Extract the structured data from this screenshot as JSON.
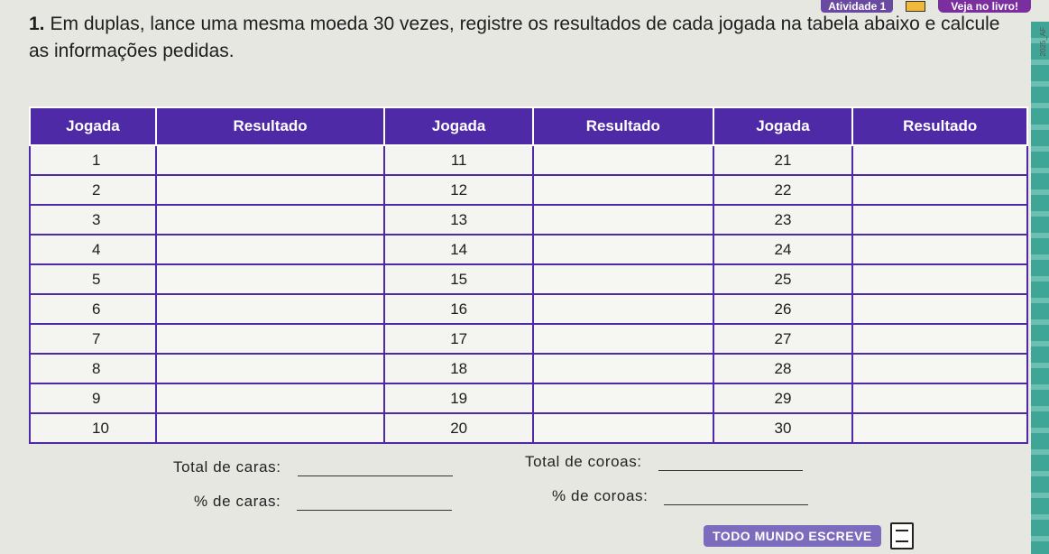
{
  "header": {
    "activity_label": "Atividade 1",
    "book_icon": "book-icon",
    "see_book_label": "Veja no livro!"
  },
  "question": {
    "number": "1.",
    "text": "Em duplas, lance uma mesma moeda 30 vezes, registre os resultados de cada jogada na tabela abaixo e calcule as informações pedidas."
  },
  "side_text": "2025_AF",
  "table": {
    "headers": [
      "Jogada",
      "Resultado",
      "Jogada",
      "Resultado",
      "Jogada",
      "Resultado"
    ],
    "rows": [
      [
        "1",
        "",
        "11",
        "",
        "21",
        ""
      ],
      [
        "2",
        "",
        "12",
        "",
        "22",
        ""
      ],
      [
        "3",
        "",
        "13",
        "",
        "23",
        ""
      ],
      [
        "4",
        "",
        "14",
        "",
        "24",
        ""
      ],
      [
        "5",
        "",
        "15",
        "",
        "25",
        ""
      ],
      [
        "6",
        "",
        "16",
        "",
        "26",
        ""
      ],
      [
        "7",
        "",
        "17",
        "",
        "27",
        ""
      ],
      [
        "8",
        "",
        "18",
        "",
        "28",
        ""
      ],
      [
        "9",
        "",
        "19",
        "",
        "29",
        ""
      ],
      [
        "10",
        "",
        "20",
        "",
        "30",
        ""
      ]
    ]
  },
  "totals": {
    "heads_total_label": "Total de caras:",
    "tails_total_label": "Total de coroas:",
    "heads_pct_label": "% de caras:",
    "tails_pct_label": "% de coroas:"
  },
  "footer": {
    "badge_label": "TODO MUNDO ESCREVE",
    "icon": "pencil-icon"
  },
  "colors": {
    "header_purple": "#4f2aa6",
    "accent_teal": "#3fa596"
  }
}
